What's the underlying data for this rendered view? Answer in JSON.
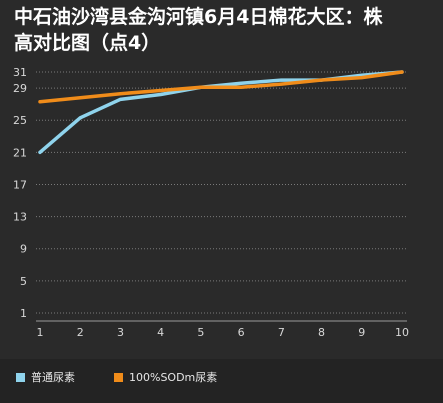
{
  "title": "中石油沙湾县金沟河镇6月4日棉花大区：株\n高对比图（点4）",
  "colors": {
    "background": "#2a2a2a",
    "grid": "#7a7a7a",
    "series1": "#8fd3ec",
    "series2": "#f08c1a"
  },
  "chart_data": {
    "type": "line",
    "title": "中石油沙湾县金沟河镇6月4日棉花大区：株高对比图（点4）",
    "x": [
      1,
      2,
      3,
      4,
      5,
      6,
      7,
      8,
      9,
      10
    ],
    "x_tick_labels": [
      "1",
      "2",
      "3",
      "4",
      "5",
      "6",
      "7",
      "8",
      "9",
      "10"
    ],
    "y_ticks": [
      1,
      5,
      9,
      13,
      17,
      21,
      25,
      29,
      31
    ],
    "y_tick_labels": [
      "1",
      "5",
      "9",
      "13",
      "17",
      "21",
      "25",
      "29",
      "31"
    ],
    "ylim": [
      0,
      32
    ],
    "grid": "horizontal dotted",
    "legend_position": "bottom",
    "series": [
      {
        "name": "普通尿素",
        "color": "#8fd3ec",
        "values": [
          21.0,
          25.3,
          27.6,
          28.2,
          29.1,
          29.6,
          30.0,
          30.0,
          30.6,
          31.0
        ]
      },
      {
        "name": "100%SODm尿素",
        "color": "#f08c1a",
        "values": [
          27.3,
          27.8,
          28.3,
          28.7,
          29.1,
          29.1,
          29.5,
          30.0,
          30.3,
          31.0
        ]
      }
    ]
  }
}
